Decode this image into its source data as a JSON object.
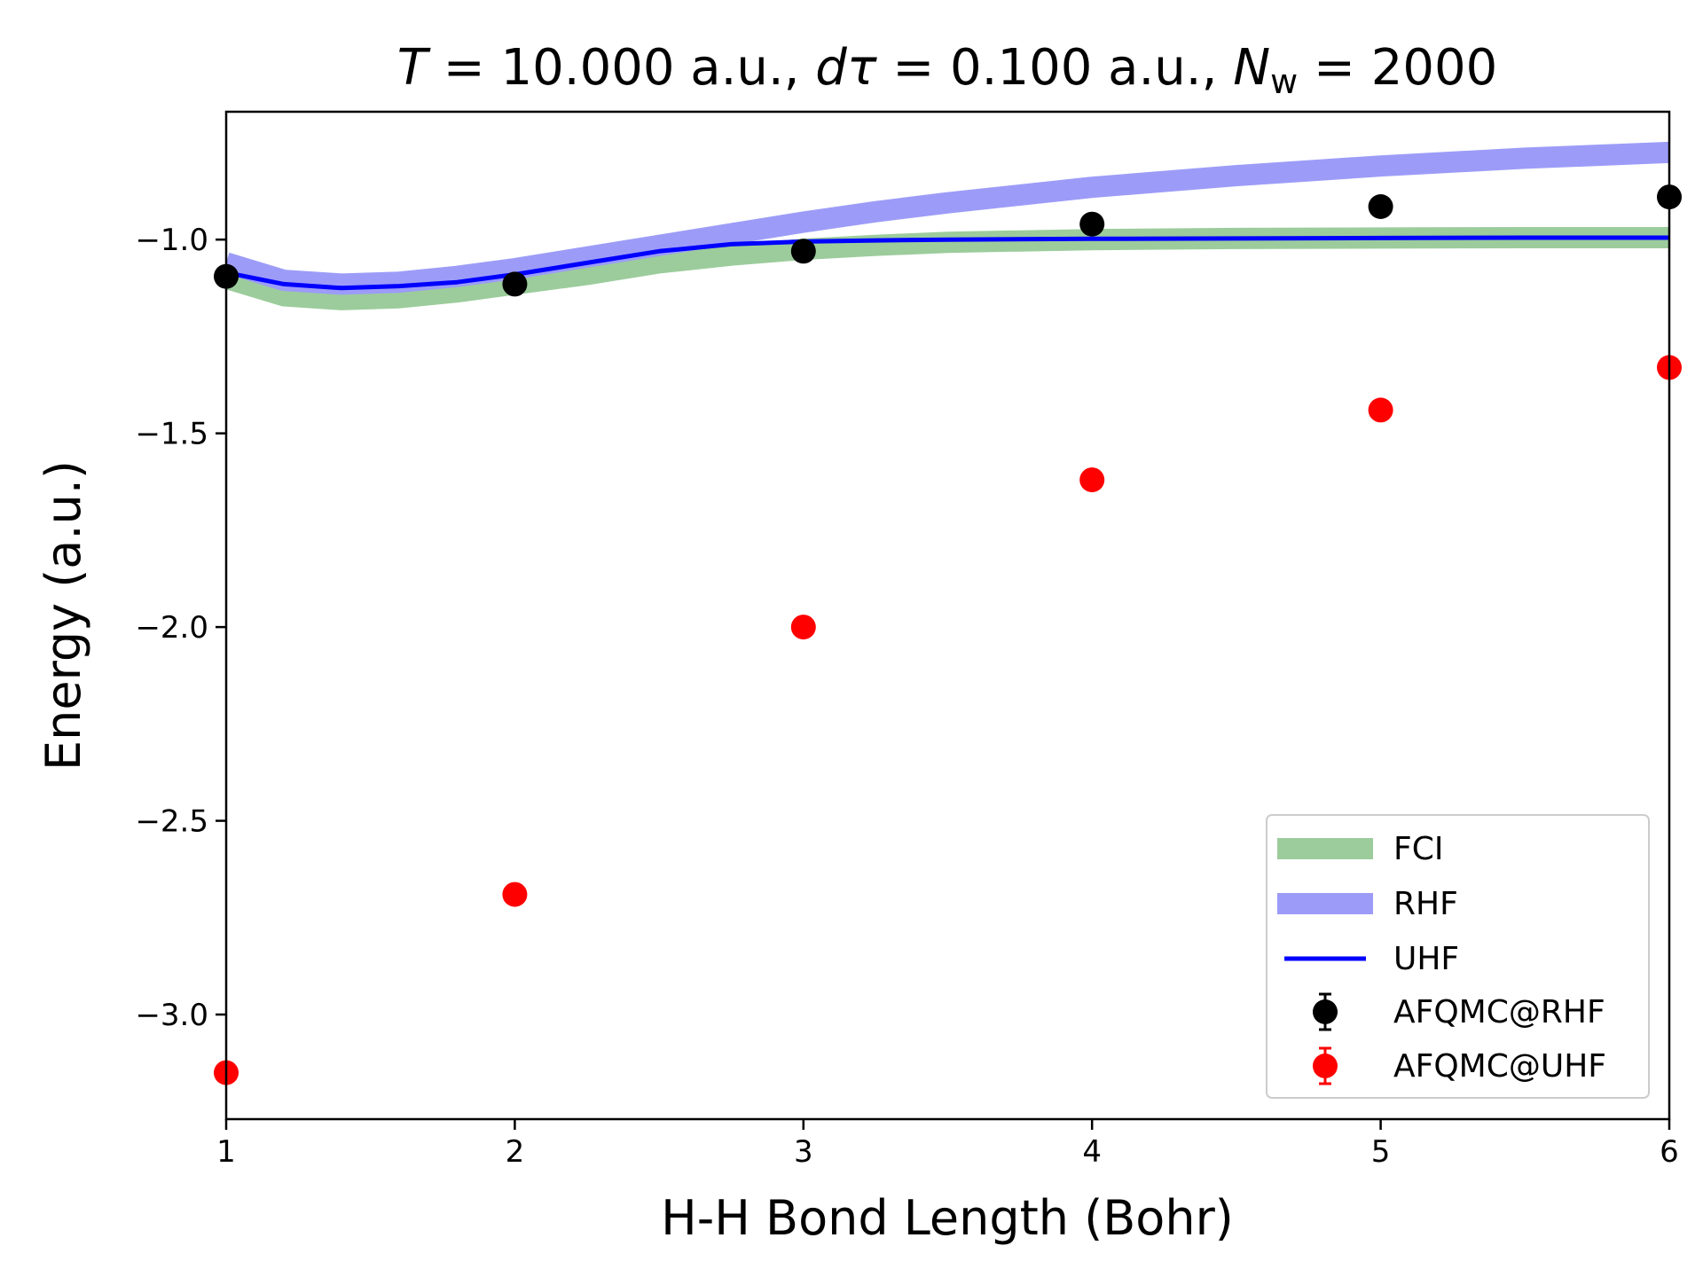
{
  "chart_data": {
    "type": "line",
    "title": {
      "T_sym": "T",
      "T_val": " = 10.000 a.u.,  ",
      "dtau_sym": "dτ",
      "dtau_val": " = 0.100 a.u.,  ",
      "Nw_sym": "N",
      "Nw_sub": "w",
      "Nw_val": " = 2000"
    },
    "xlabel": "H-H Bond Length (Bohr)",
    "ylabel": "Energy (a.u.)",
    "xlim": [
      1,
      6
    ],
    "ylim": [
      -3.27,
      -0.67
    ],
    "xticks": [
      1,
      2,
      3,
      4,
      5,
      6
    ],
    "xtick_labels": [
      "1",
      "2",
      "3",
      "4",
      "5",
      "6"
    ],
    "yticks": [
      -3.0,
      -2.5,
      -2.0,
      -1.5,
      -1.0
    ],
    "ytick_labels": [
      "−3.0",
      "−2.5",
      "−2.0",
      "−1.5",
      "−1.0"
    ],
    "legend_position": "lower right",
    "grid": false,
    "curve_x": [
      1.0,
      1.2,
      1.4,
      1.6,
      1.8,
      2.0,
      2.25,
      2.5,
      2.75,
      3.0,
      3.25,
      3.5,
      4.0,
      4.5,
      5.0,
      5.5,
      6.0
    ],
    "series": [
      {
        "name": "FCI",
        "style": "band",
        "color": "#9ccc9c",
        "y": [
          -1.1,
          -1.145,
          -1.155,
          -1.15,
          -1.135,
          -1.115,
          -1.09,
          -1.06,
          -1.04,
          -1.025,
          -1.015,
          -1.007,
          -1.0,
          -0.997,
          -0.996,
          -0.995,
          -0.995
        ]
      },
      {
        "name": "RHF",
        "style": "band",
        "color": "#9c9cf8",
        "y": [
          -1.06,
          -1.105,
          -1.115,
          -1.11,
          -1.095,
          -1.075,
          -1.045,
          -1.015,
          -0.985,
          -0.955,
          -0.928,
          -0.905,
          -0.865,
          -0.835,
          -0.81,
          -0.79,
          -0.775
        ]
      },
      {
        "name": "UHF",
        "style": "line",
        "color": "#0000ff",
        "y": [
          -1.085,
          -1.115,
          -1.125,
          -1.12,
          -1.11,
          -1.09,
          -1.06,
          -1.03,
          -1.012,
          -1.005,
          -1.002,
          -1.0,
          -0.998,
          -0.997,
          -0.996,
          -0.995,
          -0.995
        ]
      },
      {
        "name": "AFQMC@RHF",
        "style": "points",
        "color": "#000000",
        "x": [
          1,
          2,
          3,
          4,
          5,
          6
        ],
        "y": [
          -1.095,
          -1.115,
          -1.03,
          -0.96,
          -0.915,
          -0.89
        ]
      },
      {
        "name": "AFQMC@UHF",
        "style": "points",
        "color": "#ff0000",
        "x": [
          1,
          2,
          3,
          4,
          5,
          6
        ],
        "y": [
          -3.15,
          -2.69,
          -2.0,
          -1.62,
          -1.44,
          -1.33
        ]
      }
    ]
  }
}
